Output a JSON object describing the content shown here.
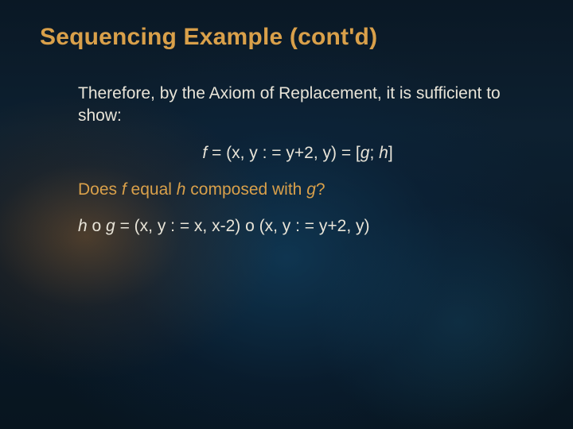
{
  "slide": {
    "title": "Sequencing Example (cont'd)",
    "title_color": "#d9a04a",
    "title_fontsize": 30,
    "title_fontweight": "bold",
    "body_color": "#e8e4d8",
    "accent_color": "#d9a04a",
    "body_fontsize": 21,
    "background": {
      "base_gradient": [
        "#0a1825",
        "#0d2030",
        "#0a1a28",
        "#08151f"
      ],
      "warm_glow": "#c87828",
      "cool_glow": "#145078"
    },
    "lines": [
      {
        "type": "para",
        "text": "Therefore, by the Axiom of Replacement, it is sufficient to show:"
      },
      {
        "type": "formula",
        "prefix_italic": "f",
        "mid": " = (x, y : = y+2, y) = [",
        "g_italic": "g",
        "sep": "; ",
        "h_italic": "h",
        "suffix": "]"
      },
      {
        "type": "question",
        "t1": "Does ",
        "f_italic": "f",
        "t2": " equal ",
        "h_italic": "h",
        "t3": " composed with ",
        "g_italic": "g",
        "t4": "?"
      },
      {
        "type": "equation",
        "h_italic": "h",
        "t1": " o ",
        "g_italic": "g",
        "t2": " = (x, y : = x, x-2) o (x, y : = y+2, y)"
      }
    ]
  }
}
